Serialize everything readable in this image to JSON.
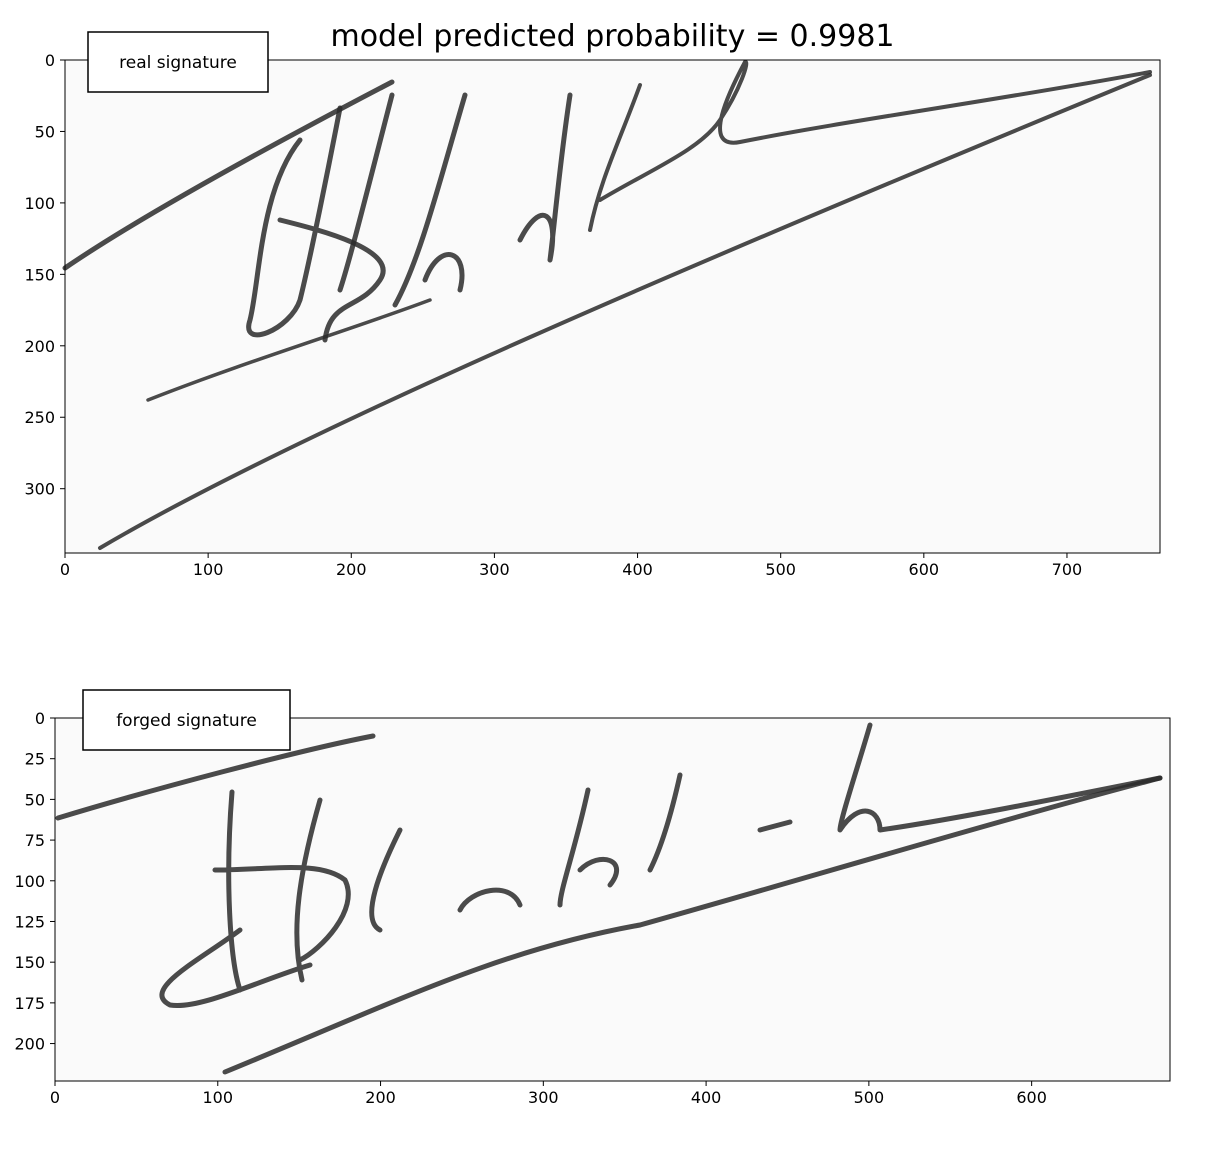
{
  "chart_data": [
    {
      "type": "image",
      "title": "model predicted probability = 0.9981",
      "annotation": "real signature",
      "xlim": [
        0,
        765
      ],
      "ylim": [
        345,
        0
      ],
      "xticks": [
        0,
        100,
        200,
        300,
        400,
        500,
        600,
        700
      ],
      "yticks": [
        0,
        50,
        100,
        150,
        200,
        250,
        300
      ]
    },
    {
      "type": "image",
      "annotation": "forged signature",
      "xlim": [
        0,
        685
      ],
      "ylim": [
        223,
        0
      ],
      "xticks": [
        0,
        100,
        200,
        300,
        400,
        500,
        600
      ],
      "yticks": [
        0,
        25,
        50,
        75,
        100,
        125,
        150,
        175,
        200
      ]
    }
  ]
}
